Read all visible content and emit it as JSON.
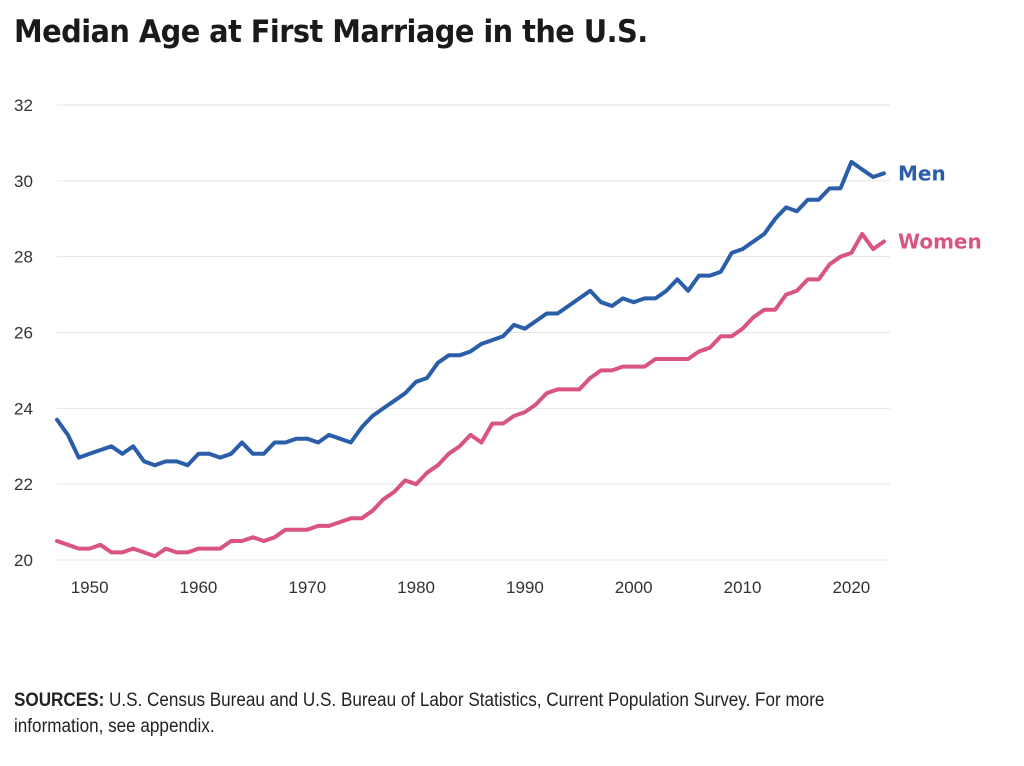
{
  "chart_data": {
    "type": "line",
    "title": "Median Age at First Marriage in the U.S.",
    "xlabel": "",
    "ylabel": "",
    "xlim": [
      1947,
      2023
    ],
    "ylim": [
      20,
      32
    ],
    "x_ticks": [
      "1950",
      "1960",
      "1970",
      "1980",
      "1990",
      "2000",
      "2010",
      "2020"
    ],
    "y_ticks": [
      "20",
      "22",
      "24",
      "26",
      "28",
      "30",
      "32"
    ],
    "grid": "horizontal",
    "legend": "direct labels at line ends",
    "x": [
      1947,
      1948,
      1949,
      1950,
      1951,
      1952,
      1953,
      1954,
      1955,
      1956,
      1957,
      1958,
      1959,
      1960,
      1961,
      1962,
      1963,
      1964,
      1965,
      1966,
      1967,
      1968,
      1969,
      1970,
      1971,
      1972,
      1973,
      1974,
      1975,
      1976,
      1977,
      1978,
      1979,
      1980,
      1981,
      1982,
      1983,
      1984,
      1985,
      1986,
      1987,
      1988,
      1989,
      1990,
      1991,
      1992,
      1993,
      1994,
      1995,
      1996,
      1997,
      1998,
      1999,
      2000,
      2001,
      2002,
      2003,
      2004,
      2005,
      2006,
      2007,
      2008,
      2009,
      2010,
      2011,
      2012,
      2013,
      2014,
      2015,
      2016,
      2017,
      2018,
      2019,
      2020,
      2021,
      2022,
      2023
    ],
    "series": [
      {
        "name": "Men",
        "color": "#2a5ea8",
        "values": [
          23.7,
          23.3,
          22.7,
          22.8,
          22.9,
          23.0,
          22.8,
          23.0,
          22.6,
          22.5,
          22.6,
          22.6,
          22.5,
          22.8,
          22.8,
          22.7,
          22.8,
          23.1,
          22.8,
          22.8,
          23.1,
          23.1,
          23.2,
          23.2,
          23.1,
          23.3,
          23.2,
          23.1,
          23.5,
          23.8,
          24.0,
          24.2,
          24.4,
          24.7,
          24.8,
          25.2,
          25.4,
          25.4,
          25.5,
          25.7,
          25.8,
          25.9,
          26.2,
          26.1,
          26.3,
          26.5,
          26.5,
          26.7,
          26.9,
          27.1,
          26.8,
          26.7,
          26.9,
          26.8,
          26.9,
          26.9,
          27.1,
          27.4,
          27.1,
          27.5,
          27.5,
          27.6,
          28.1,
          28.2,
          28.4,
          28.6,
          29.0,
          29.3,
          29.2,
          29.5,
          29.5,
          29.8,
          29.8,
          30.5,
          30.3,
          30.1,
          30.2
        ]
      },
      {
        "name": "Women",
        "color": "#d9557f",
        "values": [
          20.5,
          20.4,
          20.3,
          20.3,
          20.4,
          20.2,
          20.2,
          20.3,
          20.2,
          20.1,
          20.3,
          20.2,
          20.2,
          20.3,
          20.3,
          20.3,
          20.5,
          20.5,
          20.6,
          20.5,
          20.6,
          20.8,
          20.8,
          20.8,
          20.9,
          20.9,
          21.0,
          21.1,
          21.1,
          21.3,
          21.6,
          21.8,
          22.1,
          22.0,
          22.3,
          22.5,
          22.8,
          23.0,
          23.3,
          23.1,
          23.6,
          23.6,
          23.8,
          23.9,
          24.1,
          24.4,
          24.5,
          24.5,
          24.5,
          24.8,
          25.0,
          25.0,
          25.1,
          25.1,
          25.1,
          25.3,
          25.3,
          25.3,
          25.3,
          25.5,
          25.6,
          25.9,
          25.9,
          26.1,
          26.4,
          26.6,
          26.6,
          27.0,
          27.1,
          27.4,
          27.4,
          27.8,
          28.0,
          28.1,
          28.6,
          28.2,
          28.4
        ]
      }
    ]
  },
  "source": {
    "label": "SOURCES:",
    "text": "U.S. Census Bureau and U.S. Bureau of Labor Statistics, Current Population Survey. For more information, see appendix."
  }
}
